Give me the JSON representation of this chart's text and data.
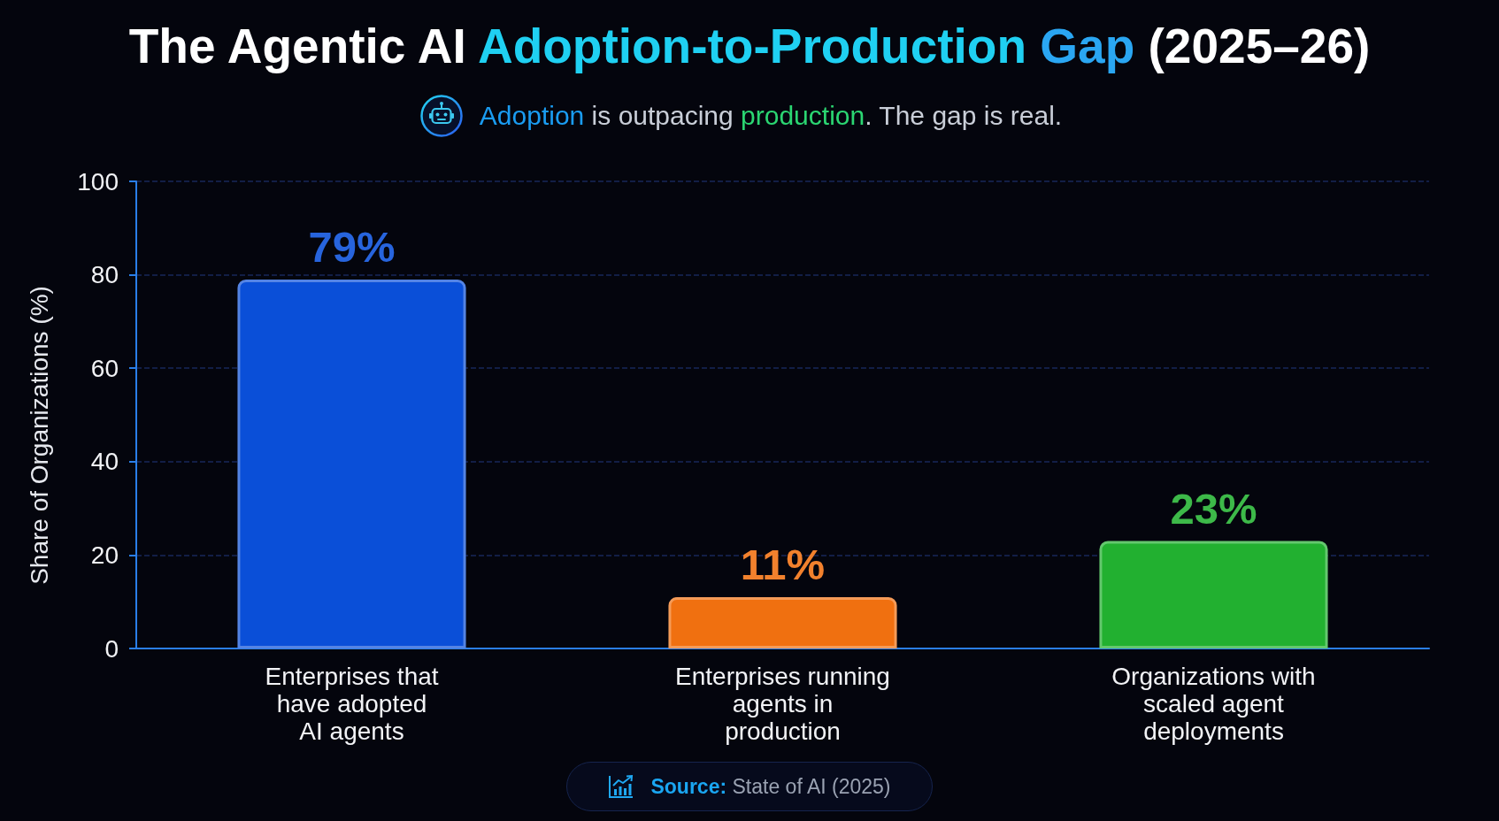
{
  "chart_data": {
    "type": "bar",
    "title": "The Agentic AI Adoption-to-Production Gap (2025–26)",
    "subtitle": "Adoption is outpacing production. The gap is real.",
    "ylabel": "Share of Organizations (%)",
    "categories": [
      "Enterprises that\nhave adopted\nAI agents",
      "Enterprises running\nagents in\nproduction",
      "Organizations with\nscaled agent\ndeployments"
    ],
    "values": [
      79,
      11,
      23
    ],
    "colors": [
      "#0a4fd8",
      "#f07010",
      "#22b030"
    ],
    "value_labels": [
      "79%",
      "11%",
      "23%"
    ],
    "ylim": [
      0,
      100
    ],
    "yticks": [
      0,
      20,
      40,
      60,
      80,
      100
    ],
    "grid": "y",
    "annotations": [
      "Source: State of AI (2025)"
    ]
  }
}
